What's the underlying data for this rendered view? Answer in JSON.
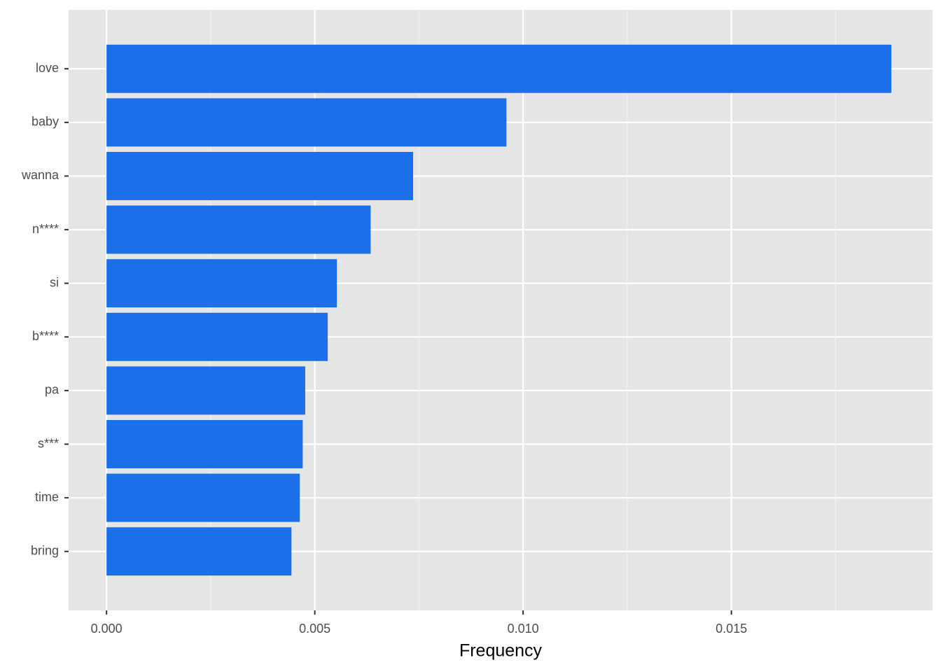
{
  "chart_data": {
    "type": "barh",
    "x_label": "Frequency",
    "categories": [
      "love",
      "baby",
      "wanna",
      "n****",
      "si",
      "b****",
      "pa",
      "s***",
      "time",
      "bring"
    ],
    "values": [
      0.01884,
      0.0096,
      0.00736,
      0.00634,
      0.00553,
      0.00531,
      0.00477,
      0.00471,
      0.00464,
      0.00444
    ],
    "color": "#1b6fe8",
    "xlim": [
      -0.00091,
      0.01983
    ],
    "xticks": [
      {
        "value": 0,
        "label": "0.000"
      },
      {
        "value": 0.005,
        "label": "0.005"
      },
      {
        "value": 0.01,
        "label": "0.010"
      },
      {
        "value": 0.015,
        "label": "0.015"
      }
    ],
    "xminorticks": [
      0.0025,
      0.0075,
      0.0125,
      0.0175
    ],
    "grid": true
  }
}
